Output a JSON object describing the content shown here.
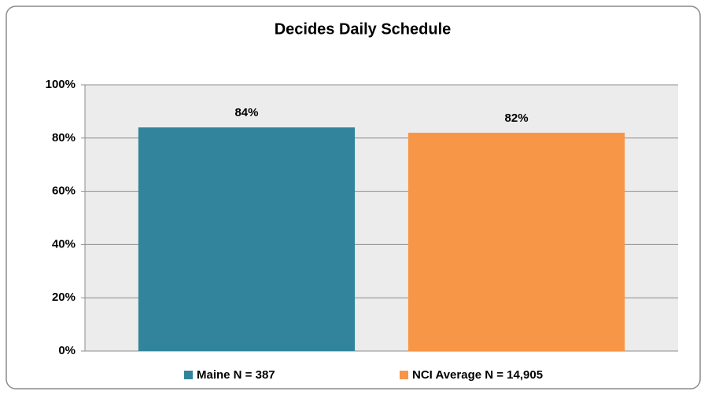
{
  "chart_data": {
    "type": "bar",
    "title": "Decides Daily Schedule",
    "series": [
      {
        "name": "Maine N = 387",
        "color": "#31849b",
        "values": [
          84
        ],
        "value_labels": [
          "84%"
        ]
      },
      {
        "name": "NCI Average N = 14,905",
        "color": "#f79646",
        "values": [
          82
        ],
        "value_labels": [
          "82%"
        ]
      }
    ],
    "ylim": [
      0,
      100
    ],
    "yticks": [
      {
        "value": 0,
        "label": "0%"
      },
      {
        "value": 20,
        "label": "20%"
      },
      {
        "value": 40,
        "label": "40%"
      },
      {
        "value": 60,
        "label": "60%"
      },
      {
        "value": 80,
        "label": "80%"
      },
      {
        "value": 100,
        "label": "100%"
      }
    ],
    "grid": true,
    "legend": "bottom"
  }
}
